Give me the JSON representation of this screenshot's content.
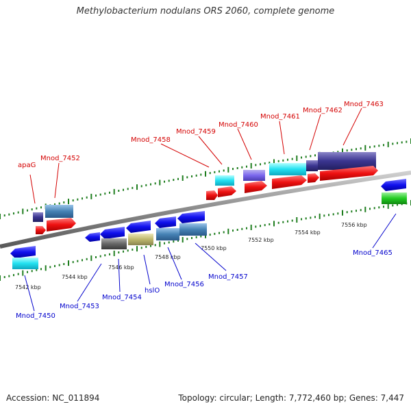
{
  "title": "Methylobacterium nodulans ORS 2060, complete genome",
  "footer": {
    "accession": "Accession: NC_011894",
    "topology": "Topology: circular; Length: 7,772,460 bp; Genes: 7,447"
  },
  "colors": {
    "backbone": "#8a8a8a",
    "tick": "#1e7d1e",
    "top_label": "#d40000",
    "bottom_label": "#0000cc"
  },
  "scale_labels": [
    "7542 kbp",
    "7544 kbp",
    "7546 kbp",
    "7548 kbp",
    "7550 kbp",
    "7552 kbp",
    "7554 kbp",
    "7556 kbp"
  ],
  "top_gene_labels": [
    "apaG",
    "Mnod_7452",
    "Mnod_7458",
    "Mnod_7459",
    "Mnod_7460",
    "Mnod_7461",
    "Mnod_7462",
    "Mnod_7463"
  ],
  "bottom_gene_labels": [
    "Mnod_7450",
    "Mnod_7453",
    "Mnod_7454",
    "hslO",
    "Mnod_7456",
    "Mnod_7457",
    "Mnod_7465"
  ]
}
